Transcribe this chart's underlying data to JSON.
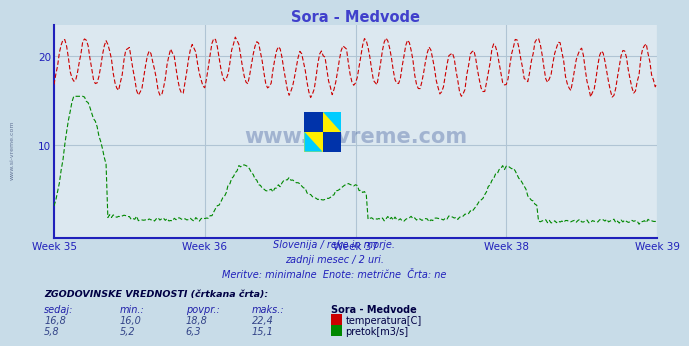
{
  "title": "Sora - Medvode",
  "title_color": "#4040cc",
  "bg_color": "#c8dce8",
  "plot_bg_color": "#dce8f0",
  "grid_color": "#b0c4d4",
  "x_ticks": [
    0,
    84,
    168,
    252,
    336
  ],
  "x_tick_labels": [
    "Week 35",
    "Week 36",
    "Week 37",
    "Week 38",
    "Week 39"
  ],
  "y_ticks": [
    10,
    20
  ],
  "ylim": [
    -0.5,
    23.5
  ],
  "xlim": [
    0,
    336
  ],
  "temp_color": "#cc0000",
  "flow_color": "#008800",
  "axis_color": "#2020bb",
  "tick_color": "#2020bb",
  "watermark": "www.si-vreme.com",
  "subtitle_lines": [
    "Slovenija / reke in morje.",
    "zadnji mesec / 2 uri.",
    "Meritve: minimalne  Enote: metrične  Črta: ne"
  ],
  "table_header": "ZGODOVINSKE VREDNOSTI (črtkana črta):",
  "col_headers": [
    "sedaj:",
    "min.:",
    "povpr.:",
    "maks.:",
    "Sora - Medvode"
  ],
  "row1": [
    "16,8",
    "16,0",
    "18,8",
    "22,4",
    "temperatura[C]"
  ],
  "row2": [
    "5,8",
    "5,2",
    "6,3",
    "15,1",
    "pretok[m3/s]"
  ],
  "n_points": 337
}
